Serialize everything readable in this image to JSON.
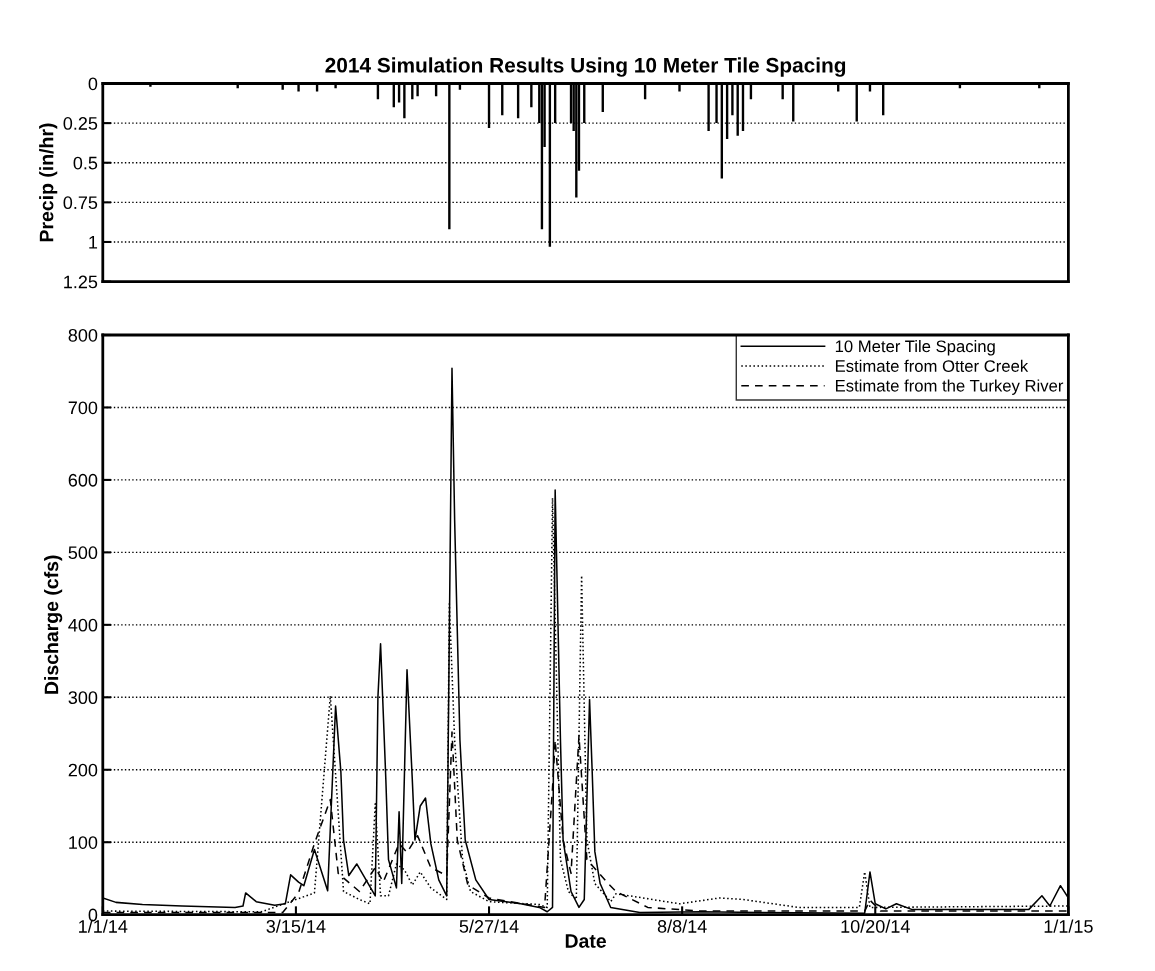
{
  "chart_data": [
    {
      "type": "bar",
      "title": "2014 Simulation Results Using 10 Meter Tile Spacing",
      "ylabel": "Precip (in/hr)",
      "color": "#000000",
      "x": [
        "2014-01-19",
        "2014-02-21",
        "2014-03-10",
        "2014-03-16",
        "2014-03-23",
        "2014-03-30",
        "2014-04-15",
        "2014-04-21",
        "2014-04-23",
        "2014-04-25",
        "2014-04-28",
        "2014-04-30",
        "2014-05-07",
        "2014-05-12",
        "2014-05-16",
        "2014-05-27",
        "2014-06-01",
        "2014-06-07",
        "2014-06-12",
        "2014-06-15",
        "2014-06-16",
        "2014-06-17",
        "2014-06-19",
        "2014-06-21",
        "2014-06-27",
        "2014-06-28",
        "2014-06-29",
        "2014-06-30",
        "2014-07-02",
        "2014-07-09",
        "2014-07-25",
        "2014-08-07",
        "2014-08-18",
        "2014-08-21",
        "2014-08-23",
        "2014-08-25",
        "2014-08-27",
        "2014-08-29",
        "2014-08-31",
        "2014-09-03",
        "2014-09-15",
        "2014-09-19",
        "2014-10-06",
        "2014-10-13",
        "2014-10-18",
        "2014-10-23",
        "2014-11-21",
        "2014-12-21"
      ],
      "values": [
        0.02,
        0.03,
        0.04,
        0.05,
        0.05,
        0.03,
        0.1,
        0.15,
        0.12,
        0.22,
        0.1,
        0.08,
        0.08,
        0.92,
        0.04,
        0.28,
        0.2,
        0.22,
        0.15,
        0.25,
        0.92,
        0.4,
        1.03,
        0.25,
        0.25,
        0.3,
        0.72,
        0.55,
        0.25,
        0.18,
        0.1,
        0.05,
        0.3,
        0.25,
        0.6,
        0.35,
        0.2,
        0.33,
        0.3,
        0.1,
        0.1,
        0.24,
        0.05,
        0.24,
        0.05,
        0.2,
        0.03,
        0.03
      ],
      "xlim": [
        "2014-01-01",
        "2015-01-01"
      ],
      "ylim": [
        1.25,
        0
      ],
      "yticks": [
        0,
        0.25,
        0.5,
        0.75,
        1,
        1.25
      ],
      "grid": "y",
      "tick_labels": "y"
    },
    {
      "type": "line",
      "xlabel": "Date",
      "ylabel": "Discharge (cfs)",
      "legend": "top right",
      "grid": "y",
      "xlim": [
        "2014-01-01",
        "2015-01-01"
      ],
      "ylim": [
        0,
        800
      ],
      "yticks": [
        0,
        100,
        200,
        300,
        400,
        500,
        600,
        700,
        800
      ],
      "xticks": [
        {
          "value": "2014-01-01",
          "label": "1/1/14"
        },
        {
          "value": "2014-03-15",
          "label": "3/15/14"
        },
        {
          "value": "2014-05-27",
          "label": "5/27/14"
        },
        {
          "value": "2014-08-08",
          "label": "8/8/14"
        },
        {
          "value": "2014-10-20",
          "label": "10/20/14"
        },
        {
          "value": "2015-01-01",
          "label": "1/1/15"
        }
      ],
      "series": [
        {
          "name": "10 Meter Tile Spacing",
          "color": "#000000",
          "line_style": "solid",
          "x": [
            "2014-01-01",
            "2014-01-06",
            "2014-01-16",
            "2014-01-31",
            "2014-02-20",
            "2014-02-23",
            "2014-02-24",
            "2014-02-28",
            "2014-03-07",
            "2014-03-11",
            "2014-03-13",
            "2014-03-16",
            "2014-03-18",
            "2014-03-22",
            "2014-03-27",
            "2014-03-30",
            "2014-04-01",
            "2014-04-02",
            "2014-04-04",
            "2014-04-07",
            "2014-04-14",
            "2014-04-15",
            "2014-04-16",
            "2014-04-18",
            "2014-04-19",
            "2014-04-22",
            "2014-04-23",
            "2014-04-24",
            "2014-04-26",
            "2014-04-28",
            "2014-04-29",
            "2014-05-01",
            "2014-05-03",
            "2014-05-05",
            "2014-05-08",
            "2014-05-11",
            "2014-05-13",
            "2014-05-14",
            "2014-05-16",
            "2014-05-18",
            "2014-05-22",
            "2014-05-27",
            "2014-06-08",
            "2014-06-15",
            "2014-06-18",
            "2014-06-20",
            "2014-06-21",
            "2014-06-23",
            "2014-06-24",
            "2014-06-27",
            "2014-06-30",
            "2014-07-02",
            "2014-07-04",
            "2014-07-05",
            "2014-07-06",
            "2014-07-08",
            "2014-07-12",
            "2014-07-23",
            "2014-08-15",
            "2014-09-06",
            "2014-10-16",
            "2014-10-18",
            "2014-10-20",
            "2014-10-24",
            "2014-10-28",
            "2014-11-03",
            "2014-12-17",
            "2014-12-22",
            "2014-12-25",
            "2014-12-29",
            "2015-01-01"
          ],
          "values": [
            23,
            17,
            14,
            12,
            10,
            12,
            30,
            18,
            13,
            15,
            55,
            45,
            40,
            90,
            33,
            288,
            197,
            103,
            54,
            70,
            26,
            300,
            374,
            186,
            76,
            37,
            142,
            43,
            338,
            186,
            103,
            150,
            161,
            98,
            48,
            26,
            754,
            545,
            241,
            103,
            48,
            21,
            15,
            10,
            4,
            10,
            586,
            241,
            103,
            32,
            10,
            21,
            297,
            197,
            87,
            43,
            10,
            3,
            4,
            3,
            2,
            59,
            15,
            8,
            15,
            7,
            7,
            26,
            12,
            40,
            23
          ]
        },
        {
          "name": "Estimate from Otter Creek",
          "color": "#000000",
          "line_style": "dotted",
          "x": [
            "2014-01-01",
            "2014-03-02",
            "2014-03-22",
            "2014-03-28",
            "2014-04-02",
            "2014-04-08",
            "2014-04-12",
            "2014-04-14",
            "2014-04-16",
            "2014-04-19",
            "2014-04-22",
            "2014-04-25",
            "2014-04-28",
            "2014-05-01",
            "2014-05-05",
            "2014-05-11",
            "2014-05-12",
            "2014-05-14",
            "2014-05-17",
            "2014-05-20",
            "2014-05-27",
            "2014-06-15",
            "2014-06-18",
            "2014-06-20",
            "2014-06-23",
            "2014-06-26",
            "2014-06-29",
            "2014-07-01",
            "2014-07-03",
            "2014-07-06",
            "2014-07-12",
            "2014-07-14",
            "2014-08-07",
            "2014-08-22",
            "2014-08-31",
            "2014-09-21",
            "2014-10-14",
            "2014-10-16",
            "2014-10-18",
            "2015-01-01"
          ],
          "values": [
            5,
            4,
            30,
            302,
            32,
            21,
            15,
            153,
            26,
            26,
            70,
            62,
            41,
            59,
            37,
            21,
            429,
            241,
            76,
            32,
            18,
            14,
            10,
            575,
            76,
            32,
            21,
            468,
            103,
            43,
            18,
            29,
            15,
            23,
            21,
            10,
            10,
            59,
            10,
            12
          ]
        },
        {
          "name": "Estimate from the Turkey River",
          "color": "#000000",
          "line_style": "dashed",
          "x": [
            "2014-01-01",
            "2014-03-10",
            "2014-03-16",
            "2014-03-22",
            "2014-03-28",
            "2014-03-31",
            "2014-04-08",
            "2014-04-14",
            "2014-04-17",
            "2014-04-23",
            "2014-04-26",
            "2014-04-30",
            "2014-05-05",
            "2014-05-11",
            "2014-05-13",
            "2014-05-15",
            "2014-05-19",
            "2014-05-27",
            "2014-06-17",
            "2014-06-20",
            "2014-06-21",
            "2014-06-24",
            "2014-06-27",
            "2014-06-30",
            "2014-07-03",
            "2014-07-11",
            "2014-07-14",
            "2014-07-26",
            "2014-08-15",
            "2014-10-16",
            "2014-10-18",
            "2014-10-22",
            "2015-01-01"
          ],
          "values": [
            3,
            3,
            30,
            98,
            159,
            57,
            32,
            65,
            45,
            98,
            86,
            109,
            65,
            54,
            252,
            103,
            41,
            23,
            10,
            175,
            241,
            103,
            57,
            247,
            76,
            43,
            32,
            10,
            5,
            5,
            20,
            5,
            5
          ]
        }
      ]
    }
  ]
}
